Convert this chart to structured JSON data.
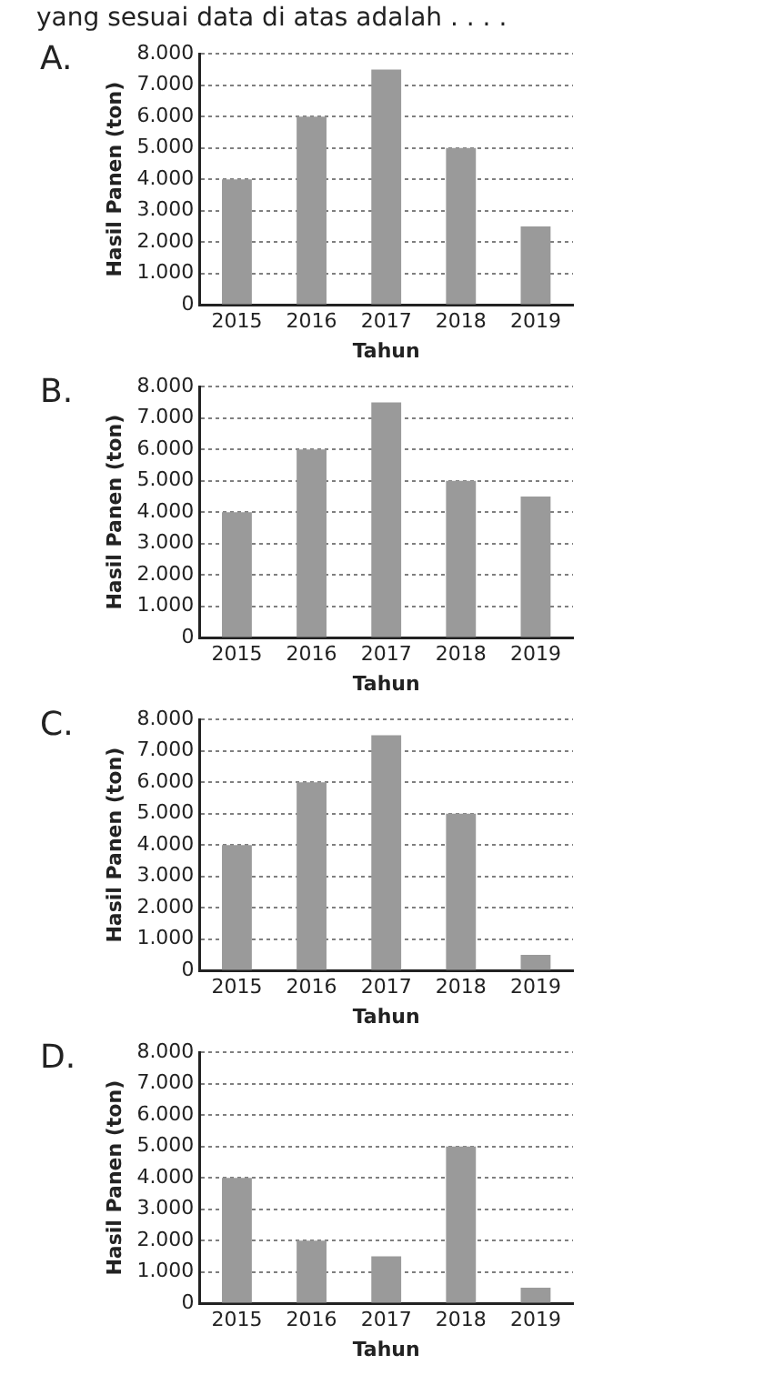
{
  "chart_data": [
    {
      "type": "bar",
      "title": "A.",
      "annotations": [
        "yang sesuai data di atas adalah . . . ."
      ],
      "xlabel": "Tahun",
      "ylabel": "Hasil Panen (ton)",
      "categories": [
        "2015",
        "2016",
        "2017",
        "2018",
        "2019"
      ],
      "values": [
        4000,
        6000,
        7500,
        5000,
        2500
      ],
      "color": "#9a9a9a",
      "ylim": [
        0,
        8000
      ],
      "yticks": [
        {
          "value": 0,
          "label": "0"
        },
        {
          "value": 1000,
          "label": "1.000"
        },
        {
          "value": 2000,
          "label": "2.000"
        },
        {
          "value": 3000,
          "label": "3.000"
        },
        {
          "value": 4000,
          "label": "4.000"
        },
        {
          "value": 5000,
          "label": "5.000"
        },
        {
          "value": 6000,
          "label": "6.000"
        },
        {
          "value": 7000,
          "label": "7.000"
        },
        {
          "value": 8000,
          "label": "8.000"
        }
      ],
      "grid": "y",
      "legend": false
    },
    {
      "type": "bar",
      "title": "B.",
      "xlabel": "Tahun",
      "ylabel": "Hasil Panen (ton)",
      "categories": [
        "2015",
        "2016",
        "2017",
        "2018",
        "2019"
      ],
      "values": [
        4000,
        6000,
        7500,
        5000,
        4500
      ],
      "color": "#9a9a9a",
      "ylim": [
        0,
        8000
      ],
      "yticks": [
        {
          "value": 0,
          "label": "0"
        },
        {
          "value": 1000,
          "label": "1.000"
        },
        {
          "value": 2000,
          "label": "2.000"
        },
        {
          "value": 3000,
          "label": "3.000"
        },
        {
          "value": 4000,
          "label": "4.000"
        },
        {
          "value": 5000,
          "label": "5.000"
        },
        {
          "value": 6000,
          "label": "6.000"
        },
        {
          "value": 7000,
          "label": "7.000"
        },
        {
          "value": 8000,
          "label": "8.000"
        }
      ],
      "grid": "y",
      "legend": false
    },
    {
      "type": "bar",
      "title": "C.",
      "xlabel": "Tahun",
      "ylabel": "Hasil Panen (ton)",
      "categories": [
        "2015",
        "2016",
        "2017",
        "2018",
        "2019"
      ],
      "values": [
        4000,
        6000,
        7500,
        5000,
        500
      ],
      "color": "#9a9a9a",
      "ylim": [
        0,
        8000
      ],
      "yticks": [
        {
          "value": 0,
          "label": "0"
        },
        {
          "value": 1000,
          "label": "1.000"
        },
        {
          "value": 2000,
          "label": "2.000"
        },
        {
          "value": 3000,
          "label": "3.000"
        },
        {
          "value": 4000,
          "label": "4.000"
        },
        {
          "value": 5000,
          "label": "5.000"
        },
        {
          "value": 6000,
          "label": "6.000"
        },
        {
          "value": 7000,
          "label": "7.000"
        },
        {
          "value": 8000,
          "label": "8.000"
        }
      ],
      "grid": "y",
      "legend": false
    },
    {
      "type": "bar",
      "title": "D.",
      "xlabel": "Tahun",
      "ylabel": "Hasil Panen (ton)",
      "categories": [
        "2015",
        "2016",
        "2017",
        "2018",
        "2019"
      ],
      "values": [
        4000,
        2000,
        1500,
        5000,
        500
      ],
      "color": "#9a9a9a",
      "ylim": [
        0,
        8000
      ],
      "yticks": [
        {
          "value": 0,
          "label": "0"
        },
        {
          "value": 1000,
          "label": "1.000"
        },
        {
          "value": 2000,
          "label": "2.000"
        },
        {
          "value": 3000,
          "label": "3.000"
        },
        {
          "value": 4000,
          "label": "4.000"
        },
        {
          "value": 5000,
          "label": "5.000"
        },
        {
          "value": 6000,
          "label": "6.000"
        },
        {
          "value": 7000,
          "label": "7.000"
        },
        {
          "value": 8000,
          "label": "8.000"
        }
      ],
      "grid": "y",
      "legend": false
    }
  ]
}
